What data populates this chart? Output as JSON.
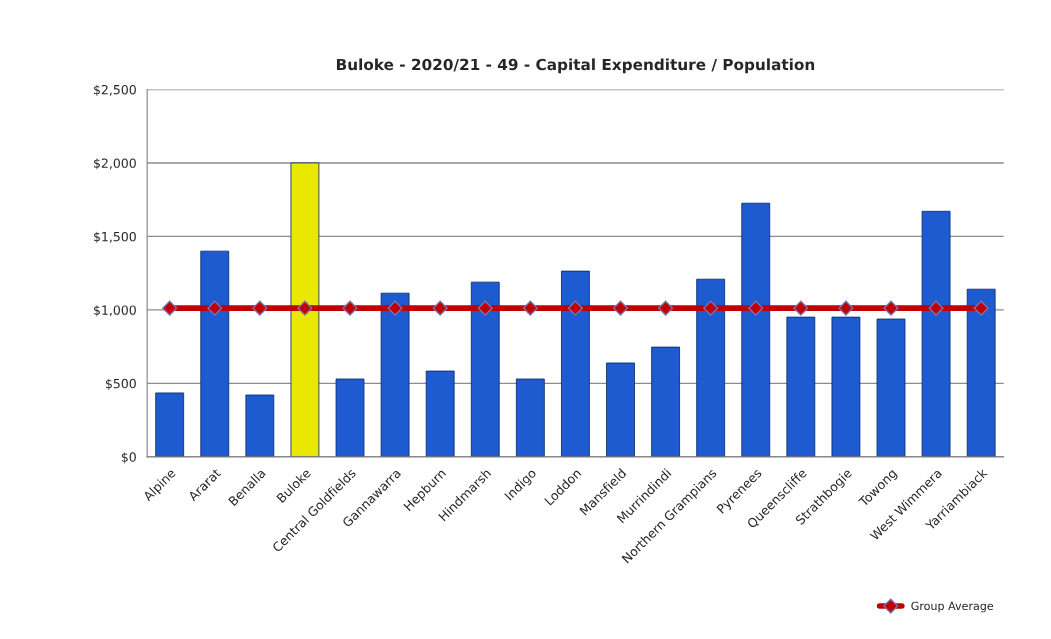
{
  "chart_data": {
    "type": "bar",
    "title": "Buloke - 2020/21 - 49 - Capital Expenditure / Population",
    "categories": [
      "Alpine",
      "Ararat",
      "Benalla",
      "Buloke",
      "Central Goldfields",
      "Gannawarra",
      "Hepburn",
      "Hindmarsh",
      "Indigo",
      "Loddon",
      "Mansfield",
      "Murrindindi",
      "Northern Grampians",
      "Pyrenees",
      "Queenscliffe",
      "Strathbogie",
      "Towong",
      "West Wimmera",
      "Yarriambiack"
    ],
    "series": [
      {
        "colors": [
          "#1f5bd0",
          "#1f5bd0",
          "#1f5bd0",
          "#e8e800",
          "#1f5bd0",
          "#1f5bd0",
          "#1f5bd0",
          "#1f5bd0",
          "#1f5bd0",
          "#1f5bd0",
          "#1f5bd0",
          "#1f5bd0",
          "#1f5bd0",
          "#1f5bd0",
          "#1f5bd0",
          "#1f5bd0",
          "#1f5bd0",
          "#1f5bd0",
          "#1f5bd0"
        ],
        "values": [
          435,
          1400,
          421,
          2000,
          530,
          1114,
          584,
          1189,
          530,
          1264,
          639,
          747,
          1209,
          1726,
          951,
          951,
          938,
          1671,
          1141
        ]
      },
      {
        "type": "line",
        "name": "Group Average",
        "color": "#c00000",
        "marker": "diamond",
        "values": [
          1012,
          1012,
          1012,
          1012,
          1012,
          1012,
          1012,
          1012,
          1012,
          1012,
          1012,
          1012,
          1012,
          1012,
          1012,
          1012,
          1012,
          1012,
          1012
        ]
      }
    ],
    "ylim": [
      0,
      2500
    ],
    "yticks": [
      {
        "value": 0,
        "label": "$0"
      },
      {
        "value": 500,
        "label": "$500"
      },
      {
        "value": 1000,
        "label": "$1,000"
      },
      {
        "value": 1500,
        "label": "$1,500"
      },
      {
        "value": 2000,
        "label": "$2,000"
      },
      {
        "value": 2500,
        "label": "$2,500"
      }
    ],
    "grid": "y",
    "legend": "bottom right"
  }
}
